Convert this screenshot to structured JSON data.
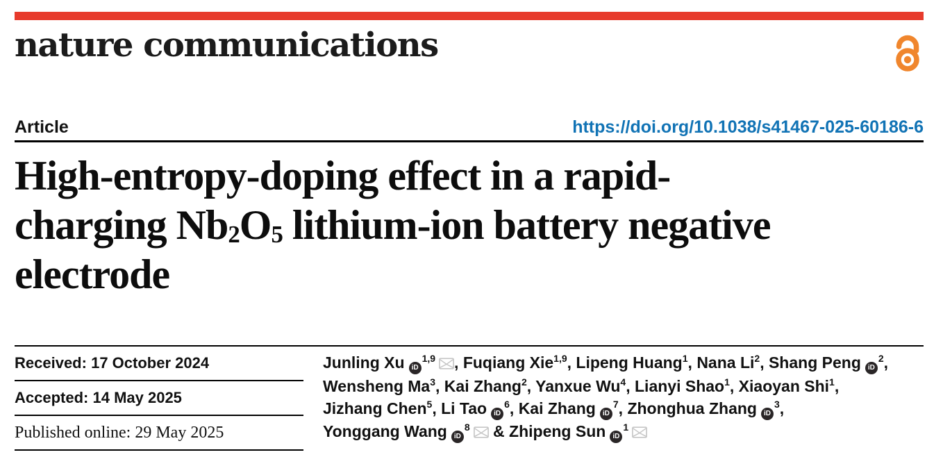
{
  "colors": {
    "brand_red": "#e73b2c",
    "open_access_orange": "#f0862d",
    "link_blue": "#1173b5",
    "envelope_gray": "#c6c6c6",
    "orcid_dark": "#2a2627"
  },
  "masthead": {
    "journal_name": "nature communications"
  },
  "article_meta": {
    "type_label": "Article",
    "doi": "https://doi.org/10.1038/s41467-025-60186-6"
  },
  "title": {
    "lines": [
      [
        {
          "t": "High-entropy-doping effect in a rapid-"
        }
      ],
      [
        {
          "t": "charging Nb"
        },
        {
          "t": "2",
          "sub": true
        },
        {
          "t": "O"
        },
        {
          "t": "5",
          "sub": true
        },
        {
          "t": " lithium-ion battery negative"
        }
      ],
      [
        {
          "t": "electrode"
        }
      ]
    ]
  },
  "history": {
    "received": {
      "label": "Received:",
      "value": "17 October 2024"
    },
    "accepted": {
      "label": "Accepted:",
      "value": "14 May 2025"
    },
    "published": {
      "label": "Published online:",
      "value": "29 May 2025"
    }
  },
  "authors": {
    "orcid_icon_text": "iD",
    "list": [
      {
        "name": "Junling Xu",
        "orcid": true,
        "sup": "1,9",
        "email": true,
        "sep": ", "
      },
      {
        "name": "Fuqiang Xie",
        "orcid": false,
        "sup": "1,9",
        "email": false,
        "sep": ", "
      },
      {
        "name": "Lipeng Huang",
        "orcid": false,
        "sup": "1",
        "email": false,
        "sep": ", "
      },
      {
        "name": "Nana Li",
        "orcid": false,
        "sup": "2",
        "email": false,
        "sep": ", "
      },
      {
        "name": "Shang Peng",
        "orcid": true,
        "sup": "2",
        "email": false,
        "sep": ",",
        "br": true
      },
      {
        "name": "Wensheng Ma",
        "orcid": false,
        "sup": "3",
        "email": false,
        "sep": ", "
      },
      {
        "name": "Kai Zhang",
        "orcid": false,
        "sup": "2",
        "email": false,
        "sep": ", "
      },
      {
        "name": "Yanxue Wu",
        "orcid": false,
        "sup": "4",
        "email": false,
        "sep": ", "
      },
      {
        "name": "Lianyi Shao",
        "orcid": false,
        "sup": "1",
        "email": false,
        "sep": ", "
      },
      {
        "name": "Xiaoyan Shi",
        "orcid": false,
        "sup": "1",
        "email": false,
        "sep": ",",
        "br": true
      },
      {
        "name": "Jizhang Chen",
        "orcid": false,
        "sup": "5",
        "email": false,
        "sep": ", "
      },
      {
        "name": "Li Tao",
        "orcid": true,
        "sup": "6",
        "email": false,
        "sep": ", "
      },
      {
        "name": "Kai Zhang",
        "orcid": true,
        "sup": "7",
        "email": false,
        "sep": ", "
      },
      {
        "name": "Zhonghua Zhang",
        "orcid": true,
        "sup": "3",
        "email": false,
        "sep": ",",
        "br": true
      },
      {
        "name": "Yonggang Wang",
        "orcid": true,
        "sup": "8",
        "email": true,
        "sep": " & "
      },
      {
        "name": "Zhipeng Sun",
        "orcid": true,
        "sup": "1",
        "email": true,
        "sep": ""
      }
    ]
  }
}
